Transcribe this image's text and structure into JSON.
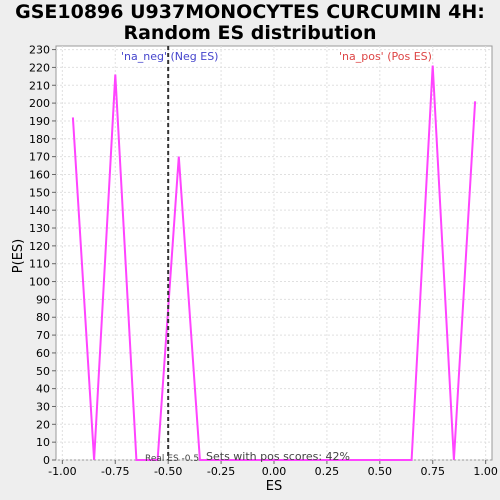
{
  "chart_data": {
    "type": "line",
    "title_line1": "GSE10896 U937MONOCYTES CURCUMIN 4H:",
    "title_line2": "Random ES distribution",
    "xlabel": "ES",
    "ylabel": "P(ES)",
    "xlim": [
      -1.03,
      1.03
    ],
    "ylim": [
      0,
      232
    ],
    "xticks": [
      -1.0,
      -0.75,
      -0.5,
      -0.25,
      0.0,
      0.25,
      0.5,
      0.75,
      1.0
    ],
    "xtick_labels": [
      "-1.00",
      "-0.75",
      "-0.50",
      "-0.25",
      "0.00",
      "0.25",
      "0.50",
      "0.75",
      "1.00"
    ],
    "yticks": [
      0,
      10,
      20,
      30,
      40,
      50,
      60,
      70,
      80,
      90,
      100,
      110,
      120,
      130,
      140,
      150,
      160,
      170,
      180,
      190,
      200,
      210,
      220,
      230
    ],
    "grid": true,
    "series": [
      {
        "color": "#ff44ff",
        "x": [
          -0.95,
          -0.85,
          -0.75,
          -0.65,
          -0.55,
          -0.45,
          -0.35,
          -0.25,
          -0.15,
          -0.05,
          0.05,
          0.15,
          0.25,
          0.35,
          0.45,
          0.55,
          0.65,
          0.75,
          0.85,
          0.95
        ],
        "y": [
          192,
          0,
          216,
          0,
          0,
          170,
          0,
          0,
          0,
          0,
          0,
          0,
          0,
          0,
          0,
          0,
          0,
          221,
          0,
          201
        ]
      }
    ],
    "real_es": -0.5,
    "annotations": {
      "neg_label": "'na_neg' (Neg ES)",
      "pos_label": "'na_pos' (Pos ES)",
      "real_es_label": "Real ES -0.5",
      "pos_scores_label": "Sets with pos scores: 42%",
      "neg_color": "#4444cc",
      "pos_color": "#dd4444"
    }
  }
}
